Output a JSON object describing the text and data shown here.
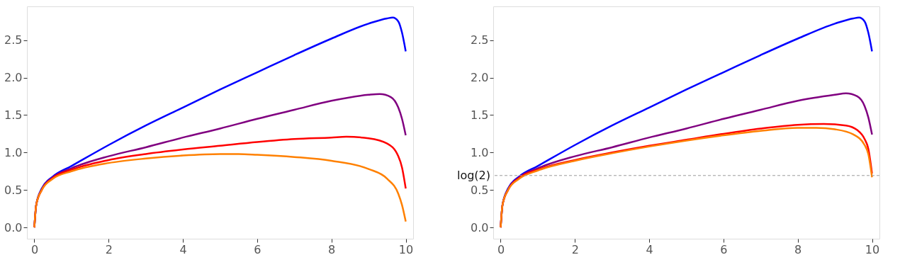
{
  "chart_data": [
    {
      "type": "line",
      "xlim": [
        -0.2,
        10.2
      ],
      "ylim": [
        -0.15,
        2.95
      ],
      "xticks": [
        0,
        2,
        4,
        6,
        8,
        10
      ],
      "yticks": [
        {
          "value": 0,
          "label": "0.0"
        },
        0.5,
        {
          "value": 1,
          "label": "1.0"
        },
        1.5,
        {
          "value": 2,
          "label": "2.0"
        },
        2.5
      ],
      "grid": false,
      "series": [
        {
          "color": "#0000ff",
          "x": [
            0,
            0.05,
            0.2,
            0.5,
            1,
            2,
            3,
            4,
            5,
            6,
            7,
            8,
            9,
            9.5,
            9.65,
            9.8,
            9.9,
            10
          ],
          "values": [
            0,
            0.3,
            0.52,
            0.68,
            0.82,
            1.1,
            1.36,
            1.6,
            1.84,
            2.07,
            2.3,
            2.52,
            2.72,
            2.79,
            2.8,
            2.75,
            2.6,
            2.35
          ]
        },
        {
          "color": "#800080",
          "x": [
            0,
            0.05,
            0.2,
            0.5,
            1,
            2,
            3,
            4,
            5,
            6,
            7,
            8,
            9,
            9.3,
            9.6,
            9.8,
            9.9,
            10
          ],
          "values": [
            0,
            0.3,
            0.51,
            0.67,
            0.79,
            0.95,
            1.07,
            1.2,
            1.32,
            1.45,
            1.57,
            1.69,
            1.77,
            1.78,
            1.74,
            1.6,
            1.45,
            1.23
          ]
        },
        {
          "color": "#ff0000",
          "x": [
            0,
            0.05,
            0.2,
            0.5,
            1,
            2,
            3,
            4,
            5,
            6,
            7,
            8,
            8.4,
            9,
            9.5,
            9.8,
            9.9,
            10
          ],
          "values": [
            0,
            0.3,
            0.5,
            0.66,
            0.77,
            0.9,
            0.98,
            1.04,
            1.09,
            1.14,
            1.18,
            1.2,
            1.21,
            1.19,
            1.12,
            0.95,
            0.8,
            0.52
          ]
        },
        {
          "color": "#ff8000",
          "x": [
            0,
            0.05,
            0.2,
            0.5,
            1,
            2,
            3,
            4,
            5,
            5.5,
            6,
            7,
            8,
            9,
            9.5,
            9.8,
            9.9,
            10
          ],
          "values": [
            0,
            0.3,
            0.5,
            0.65,
            0.75,
            0.86,
            0.92,
            0.96,
            0.98,
            0.98,
            0.97,
            0.94,
            0.89,
            0.78,
            0.65,
            0.45,
            0.3,
            0.08
          ]
        }
      ]
    },
    {
      "type": "line",
      "xlim": [
        -0.2,
        10.2
      ],
      "ylim": [
        -0.15,
        2.95
      ],
      "xticks": [
        0,
        2,
        4,
        6,
        8,
        10
      ],
      "yticks": [
        {
          "value": 0,
          "label": "0.0"
        },
        0.5,
        {
          "value": 1,
          "label": "1.0"
        },
        1.5,
        {
          "value": 2,
          "label": "2.0"
        },
        2.5
      ],
      "grid": false,
      "ref_lines": [
        {
          "axis": "y",
          "value": 0.693,
          "label": "log(2)",
          "color": "#999999",
          "line_style": "dashed"
        }
      ],
      "series": [
        {
          "color": "#0000ff",
          "x": [
            0,
            0.05,
            0.2,
            0.5,
            1,
            2,
            3,
            4,
            5,
            6,
            7,
            8,
            9,
            9.5,
            9.65,
            9.8,
            9.9,
            10
          ],
          "values": [
            0,
            0.3,
            0.52,
            0.68,
            0.82,
            1.1,
            1.36,
            1.6,
            1.84,
            2.07,
            2.3,
            2.52,
            2.72,
            2.79,
            2.8,
            2.75,
            2.6,
            2.35
          ]
        },
        {
          "color": "#800080",
          "x": [
            0,
            0.05,
            0.2,
            0.5,
            1,
            2,
            3,
            4,
            5,
            6,
            7,
            8,
            9,
            9.3,
            9.6,
            9.8,
            9.9,
            10
          ],
          "values": [
            0,
            0.3,
            0.51,
            0.67,
            0.79,
            0.95,
            1.07,
            1.2,
            1.32,
            1.45,
            1.57,
            1.69,
            1.77,
            1.79,
            1.75,
            1.62,
            1.47,
            1.24
          ]
        },
        {
          "color": "#ff0000",
          "x": [
            0,
            0.05,
            0.2,
            0.5,
            1,
            2,
            3,
            4,
            5,
            6,
            7,
            8,
            8.7,
            9.3,
            9.6,
            9.8,
            9.9,
            10
          ],
          "values": [
            0,
            0.3,
            0.5,
            0.66,
            0.77,
            0.9,
            1.0,
            1.09,
            1.17,
            1.25,
            1.32,
            1.37,
            1.38,
            1.36,
            1.3,
            1.18,
            1.05,
            0.72
          ]
        },
        {
          "color": "#ff8000",
          "x": [
            0,
            0.05,
            0.2,
            0.5,
            1,
            2,
            3,
            4,
            5,
            6,
            7,
            8,
            8.5,
            9,
            9.5,
            9.8,
            9.9,
            10
          ],
          "values": [
            0,
            0.3,
            0.5,
            0.65,
            0.76,
            0.89,
            0.99,
            1.08,
            1.16,
            1.23,
            1.29,
            1.33,
            1.33,
            1.31,
            1.24,
            1.1,
            0.98,
            0.67
          ]
        }
      ]
    }
  ]
}
